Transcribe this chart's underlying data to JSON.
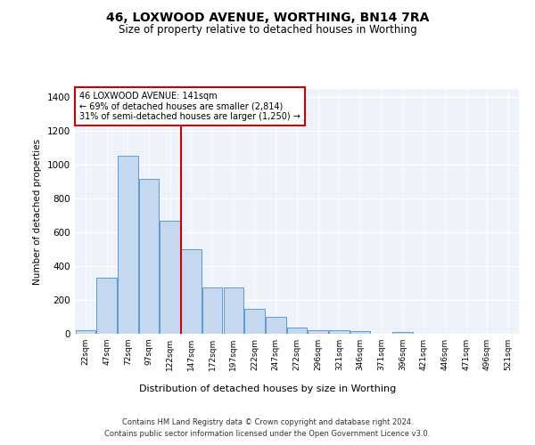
{
  "title": "46, LOXWOOD AVENUE, WORTHING, BN14 7RA",
  "subtitle": "Size of property relative to detached houses in Worthing",
  "xlabel": "Distribution of detached houses by size in Worthing",
  "ylabel": "Number of detached properties",
  "bar_color": "#c5d8f0",
  "bar_edge_color": "#5b9bd5",
  "background_color": "#eef3fb",
  "grid_color": "#ffffff",
  "categories": [
    "22sqm",
    "47sqm",
    "72sqm",
    "97sqm",
    "122sqm",
    "147sqm",
    "172sqm",
    "197sqm",
    "222sqm",
    "247sqm",
    "272sqm",
    "296sqm",
    "321sqm",
    "346sqm",
    "371sqm",
    "396sqm",
    "421sqm",
    "446sqm",
    "471sqm",
    "496sqm",
    "521sqm"
  ],
  "values": [
    20,
    330,
    1055,
    920,
    670,
    500,
    275,
    275,
    150,
    100,
    35,
    22,
    20,
    15,
    0,
    10,
    0,
    0,
    0,
    0,
    0
  ],
  "red_line_x": 4.5,
  "marker_label_line1": "46 LOXWOOD AVENUE: 141sqm",
  "marker_label_line2": "← 69% of detached houses are smaller (2,814)",
  "marker_label_line3": "31% of semi-detached houses are larger (1,250) →",
  "marker_color": "#cc0000",
  "annotation_box_color": "#cc0000",
  "ylim": [
    0,
    1450
  ],
  "yticks": [
    0,
    200,
    400,
    600,
    800,
    1000,
    1200,
    1400
  ],
  "footer_line1": "Contains HM Land Registry data © Crown copyright and database right 2024.",
  "footer_line2": "Contains public sector information licensed under the Open Government Licence v3.0."
}
